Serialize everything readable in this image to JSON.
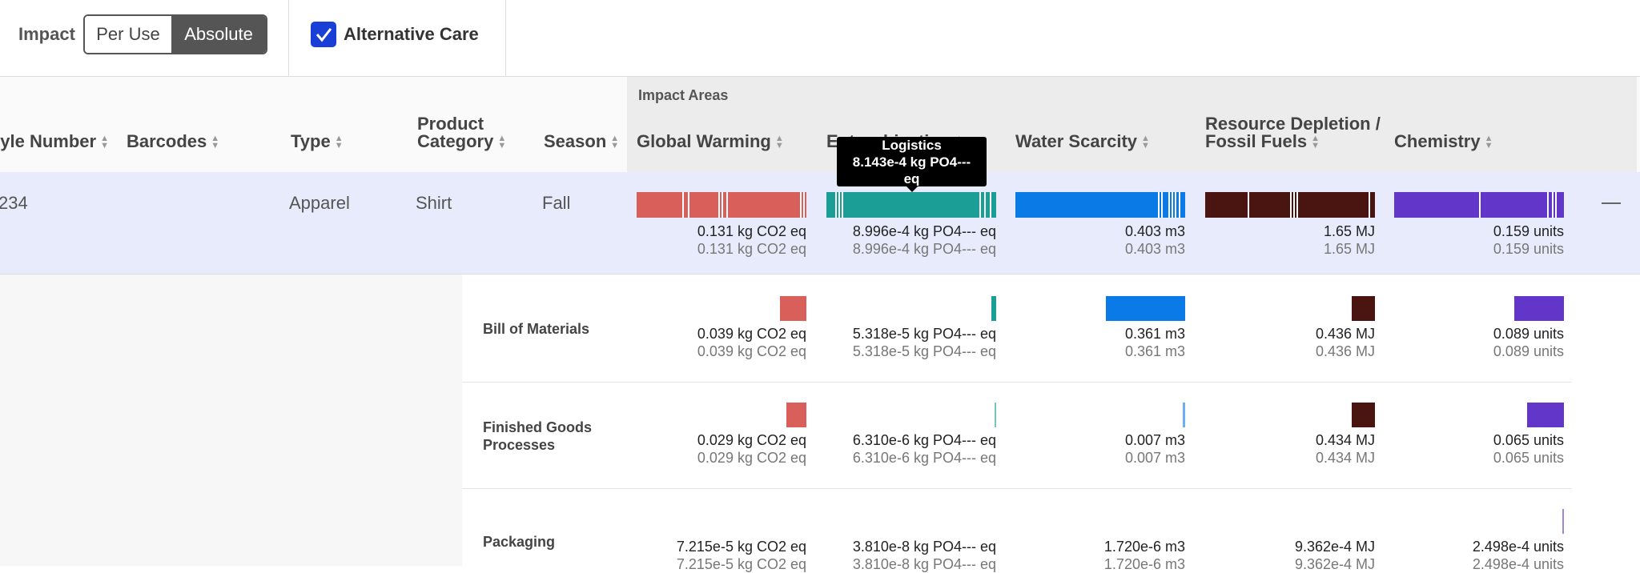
{
  "toolbar": {
    "impact_label": "Impact",
    "toggle": [
      "Per Use",
      "Absolute"
    ],
    "checkbox_label": "Alternative Care"
  },
  "table": {
    "group_label": "Impact Areas",
    "columns": [
      "yle Number",
      "Barcodes",
      "Type",
      "Product Category",
      "Season"
    ],
    "impact_columns": [
      {
        "name": "Global Warming",
        "color": "#d9605a"
      },
      {
        "name": "Eutrophication",
        "color": "#1a9e96"
      },
      {
        "name": "Water Scarcity",
        "color": "#0a7ae6"
      },
      {
        "name": "Resource Depletion / Fossil Fuels",
        "color": "#4a1410"
      },
      {
        "name": "Chemistry",
        "color": "#6236c8"
      }
    ],
    "row": {
      "cells": [
        "234",
        "",
        "Apparel",
        "Shirt",
        "Fall"
      ],
      "impacts": [
        [
          "0.131 kg CO2 eq",
          "0.131 kg CO2 eq"
        ],
        [
          "8.996e-4 kg PO4--- eq",
          "8.996e-4 kg PO4--- eq"
        ],
        [
          "0.403 m3",
          "0.403 m3"
        ],
        [
          "1.65 MJ",
          "1.65 MJ"
        ],
        [
          "0.159 units",
          "0.159 units"
        ]
      ]
    },
    "tooltip": {
      "title": "Logistics",
      "value": "8.143e-4 kg PO4--- eq"
    },
    "subrows": [
      {
        "label": "Bill of Materials",
        "impacts": [
          [
            "0.039 kg CO2 eq",
            "0.039 kg CO2 eq"
          ],
          [
            "5.318e-5 kg PO4--- eq",
            "5.318e-5 kg PO4--- eq"
          ],
          [
            "0.361 m3",
            "0.361 m3"
          ],
          [
            "0.436 MJ",
            "0.436 MJ"
          ],
          [
            "0.089 units",
            "0.089 units"
          ]
        ]
      },
      {
        "label": "Finished Goods Processes",
        "impacts": [
          [
            "0.029 kg CO2 eq",
            "0.029 kg CO2 eq"
          ],
          [
            "6.310e-6 kg PO4--- eq",
            "6.310e-6 kg PO4--- eq"
          ],
          [
            "0.007 m3",
            "0.007 m3"
          ],
          [
            "0.434 MJ",
            "0.434 MJ"
          ],
          [
            "0.065 units",
            "0.065 units"
          ]
        ]
      },
      {
        "label": "Packaging",
        "impacts": [
          [
            "7.215e-5 kg CO2 eq",
            "7.215e-5 kg CO2 eq"
          ],
          [
            "3.810e-8 kg PO4--- eq",
            "3.810e-8 kg PO4--- eq"
          ],
          [
            "1.720e-6 m3",
            "1.720e-6 m3"
          ],
          [
            "9.362e-4 MJ",
            "9.362e-4 MJ"
          ],
          [
            "2.498e-4 units",
            "2.498e-4 units"
          ]
        ]
      }
    ]
  }
}
